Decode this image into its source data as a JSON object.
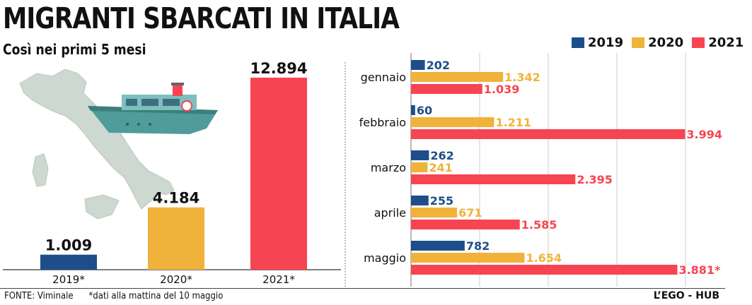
{
  "header": {
    "title": "MIGRANTI SBARCATI IN ITALIA",
    "subtitle": "Così nei primi 5 mesi"
  },
  "legend": [
    {
      "label": "2019",
      "color": "#1d4e89"
    },
    {
      "label": "2020",
      "color": "#f0b23b"
    },
    {
      "label": "2021",
      "color": "#f74452"
    }
  ],
  "footer": {
    "source": "FONTE: Viminale",
    "note": "*dati alla mattina del 10 maggio",
    "credit": "L’EGO - HUB"
  },
  "chart_data": [
    {
      "type": "bar",
      "categories": [
        "2019*",
        "2020*",
        "2021*"
      ],
      "values": [
        1009,
        4184,
        12894
      ],
      "value_labels": [
        "1.009",
        "4.184",
        "12.894"
      ],
      "colors": [
        "#1d4e89",
        "#f0b23b",
        "#f74452"
      ],
      "ylim": [
        0,
        14000
      ]
    },
    {
      "type": "bar",
      "orientation": "horizontal",
      "categories": [
        "gennaio",
        "febbraio",
        "marzo",
        "aprile",
        "maggio"
      ],
      "series": [
        {
          "name": "2019",
          "color": "#1d4e89",
          "values": [
            202,
            60,
            262,
            255,
            782
          ],
          "labels": [
            "202",
            "60",
            "262",
            "255",
            "782"
          ]
        },
        {
          "name": "2020",
          "color": "#f0b23b",
          "values": [
            1342,
            1211,
            241,
            671,
            1654
          ],
          "labels": [
            "1.342",
            "1.211",
            "241",
            "671",
            "1.654"
          ]
        },
        {
          "name": "2021",
          "color": "#f74452",
          "values": [
            1039,
            3994,
            2395,
            1585,
            3881
          ],
          "labels": [
            "1.039",
            "3.994",
            "2.395",
            "1.585",
            "3.881*"
          ]
        }
      ],
      "xlim": [
        0,
        4000
      ],
      "grid": true
    }
  ]
}
